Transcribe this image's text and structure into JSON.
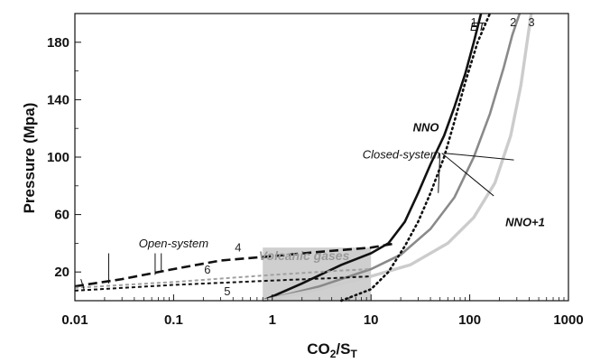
{
  "chart_data": {
    "type": "line",
    "title": "",
    "xlabel": {
      "base": "CO",
      "sub1": "2",
      "mid": "/S",
      "sub2": "T"
    },
    "ylabel": "Pressure (Mpa)",
    "xscale": "log",
    "xlim": [
      0.01,
      1000
    ],
    "ylim": [
      0,
      200
    ],
    "xticks": [
      {
        "value": 0.01,
        "label": "0.01"
      },
      {
        "value": 0.1,
        "label": "0.1"
      },
      {
        "value": 1,
        "label": "1"
      },
      {
        "value": 10,
        "label": "10"
      },
      {
        "value": 100,
        "label": "100"
      },
      {
        "value": 1000,
        "label": "1000"
      }
    ],
    "yticks": [
      {
        "value": 20,
        "label": "20"
      },
      {
        "value": 60,
        "label": "60"
      },
      {
        "value": 100,
        "label": "100"
      },
      {
        "value": 140,
        "label": "140"
      },
      {
        "value": 180,
        "label": "180"
      }
    ],
    "shaded_region": {
      "label": "Volcanic gases",
      "x": [
        0.8,
        10
      ],
      "y": [
        0,
        37
      ],
      "color": "#cfcfcf"
    },
    "series": [
      {
        "name": "1",
        "color": "#111111",
        "style": "solid",
        "points": [
          [
            0.8,
            0
          ],
          [
            2,
            12
          ],
          [
            5,
            25
          ],
          [
            10,
            33
          ],
          [
            15,
            40
          ],
          [
            22,
            55
          ],
          [
            30,
            75
          ],
          [
            40,
            95
          ],
          [
            55,
            115
          ],
          [
            70,
            135
          ],
          [
            90,
            158
          ],
          [
            110,
            180
          ],
          [
            130,
            200
          ]
        ]
      },
      {
        "name": "2",
        "color": "#8a8a8a",
        "style": "solid",
        "points": [
          [
            0.8,
            0
          ],
          [
            3,
            10
          ],
          [
            10,
            22
          ],
          [
            20,
            32
          ],
          [
            40,
            50
          ],
          [
            70,
            72
          ],
          [
            110,
            100
          ],
          [
            160,
            130
          ],
          [
            220,
            162
          ],
          [
            270,
            185
          ],
          [
            320,
            200
          ]
        ]
      },
      {
        "name": "3",
        "color": "#cccccc",
        "style": "solid",
        "points": [
          [
            0.8,
            0
          ],
          [
            3,
            8
          ],
          [
            10,
            17
          ],
          [
            25,
            25
          ],
          [
            60,
            40
          ],
          [
            110,
            58
          ],
          [
            180,
            82
          ],
          [
            260,
            115
          ],
          [
            330,
            150
          ],
          [
            390,
            185
          ],
          [
            420,
            200
          ]
        ]
      },
      {
        "name": "ET",
        "color": "#111111",
        "style": "dotted",
        "points": [
          [
            5,
            0
          ],
          [
            10,
            8
          ],
          [
            15,
            20
          ],
          [
            22,
            38
          ],
          [
            30,
            55
          ],
          [
            40,
            75
          ],
          [
            55,
            100
          ],
          [
            70,
            125
          ],
          [
            90,
            152
          ],
          [
            120,
            180
          ],
          [
            160,
            200
          ]
        ]
      },
      {
        "name": "4",
        "color": "#111111",
        "style": "dashed",
        "points": [
          [
            0.01,
            10
          ],
          [
            0.03,
            15
          ],
          [
            0.1,
            22
          ],
          [
            0.3,
            28
          ],
          [
            1,
            31
          ],
          [
            3,
            34
          ],
          [
            10,
            37
          ],
          [
            18,
            40
          ]
        ]
      },
      {
        "name": "5",
        "color": "#111111",
        "style": "short-dashed",
        "points": [
          [
            0.01,
            7
          ],
          [
            0.1,
            11
          ],
          [
            1,
            14
          ],
          [
            5,
            16
          ],
          [
            10,
            17
          ]
        ]
      },
      {
        "name": "6",
        "color": "#a0a0a0",
        "style": "short-dashed",
        "points": [
          [
            0.01,
            9
          ],
          [
            0.1,
            13
          ],
          [
            1,
            18
          ],
          [
            5,
            21
          ],
          [
            10,
            22
          ]
        ]
      }
    ],
    "annotations": [
      {
        "text": "NNO",
        "x": 36,
        "y": 118
      },
      {
        "text": "NNO+1",
        "x": 230,
        "y": 52
      },
      {
        "text": "Closed-system",
        "x": 50,
        "y": 99
      },
      {
        "text": "Open-system",
        "x": 0.1,
        "y": 37
      },
      {
        "text": "ET",
        "x": 120,
        "y": 188
      }
    ],
    "grid": false,
    "legend": "none"
  }
}
